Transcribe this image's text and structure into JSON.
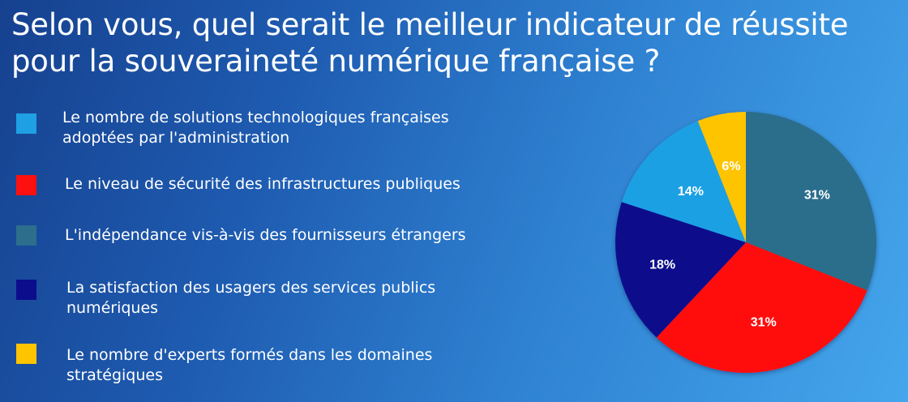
{
  "title": "Selon vous, quel serait le meilleur indicateur de réussite pour la souveraineté numérique française ?",
  "chart_data": {
    "type": "pie",
    "legend_position": "left",
    "slices": [
      {
        "label": "Le nombre de solutions technologiques françaises adoptées par l'administration",
        "value": 14,
        "value_label": "14%",
        "color": "#1fa0e4",
        "label_color": "#ffffff"
      },
      {
        "label": "Le niveau de sécurité des infrastructures publiques",
        "value": 31,
        "value_label": "31%",
        "color": "#ff1010",
        "label_color": "#ffffff"
      },
      {
        "label": "L'indépendance vis-à-vis des fournisseurs étrangers",
        "value": 31,
        "value_label": "31%",
        "color": "#2c6e8c",
        "label_color": "#ffffff"
      },
      {
        "label": "La satisfaction des usagers des services publics numériques",
        "value": 18,
        "value_label": "18%",
        "color": "#0c0d8c",
        "label_color": "#ffffff"
      },
      {
        "label": "Le nombre d'experts formés dans les domaines stratégiques",
        "value": 6,
        "value_label": "6%",
        "color": "#ffc400",
        "label_color": "#ffffff"
      }
    ],
    "draw_order": [
      2,
      1,
      3,
      0,
      4
    ]
  }
}
